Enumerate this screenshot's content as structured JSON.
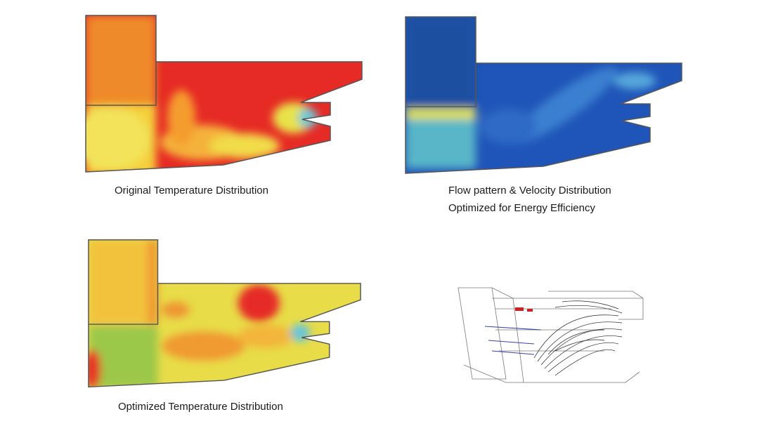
{
  "panels": [
    {
      "caption": [
        "Original Temperature Distribution"
      ]
    },
    {
      "caption": [
        "Flow pattern & Velocity Distribution",
        "Optimized for Energy Efficiency"
      ]
    },
    {
      "caption": [
        "Optimized Temperature Distribution"
      ]
    }
  ]
}
